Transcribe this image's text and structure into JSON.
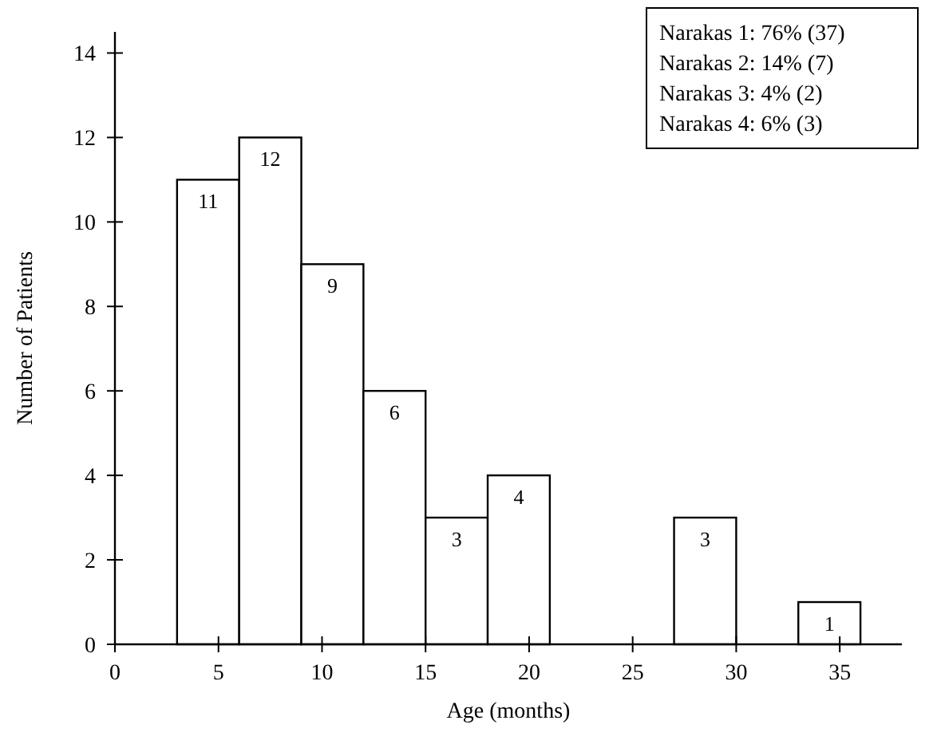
{
  "chart_data": {
    "type": "histogram",
    "xlabel": "Age (months)",
    "ylabel": "Number of Patients",
    "bins": [
      0,
      3,
      6,
      9,
      12,
      15,
      18,
      21,
      24,
      27,
      30,
      33,
      36
    ],
    "values": [
      0,
      11,
      12,
      9,
      6,
      3,
      4,
      0,
      0,
      3,
      0,
      1
    ],
    "value_labels": [
      null,
      "11",
      "12",
      "9",
      "6",
      "3",
      "4",
      null,
      null,
      "3",
      null,
      "1"
    ],
    "color": "#ffffff",
    "xlim": [
      0,
      38
    ],
    "xticks": [
      0,
      5,
      10,
      15,
      20,
      25,
      30,
      35
    ],
    "ylim": [
      0,
      14.5
    ],
    "yticks": [
      0,
      2,
      4,
      6,
      8,
      10,
      12,
      14
    ],
    "grid": false,
    "annotations": [
      "Narakas 1: 76% (37)",
      "Narakas 2: 14% (7)",
      "Narakas 3: 4% (2)",
      "Narakas 4: 6% (3)"
    ]
  }
}
